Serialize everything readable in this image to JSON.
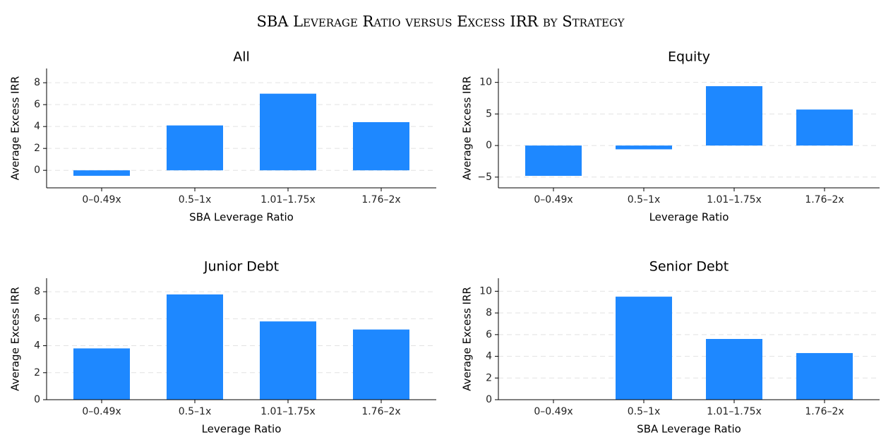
{
  "title": "SBA Leverage Ratio versus Excess IRR by Strategy",
  "chart_data": [
    {
      "type": "bar",
      "title": "All",
      "x_label": "SBA Leverage Ratio",
      "y_label": "Average Excess IRR",
      "categories": [
        "0–0.49x",
        "0.5–1x",
        "1.01–1.75x",
        "1.76–2x"
      ],
      "values": [
        -0.5,
        4.1,
        7.0,
        4.4
      ],
      "color": "#1e88ff",
      "ylim": [
        -1.6,
        9.3
      ],
      "yticks": [
        0,
        2,
        4,
        6,
        8
      ],
      "grid": true
    },
    {
      "type": "bar",
      "title": "Equity",
      "x_label": "Leverage Ratio",
      "y_label": "Average Excess IRR",
      "categories": [
        "0–0.49x",
        "0.5–1x",
        "1.01–1.75x",
        "1.76–2x"
      ],
      "values": [
        -4.8,
        -0.6,
        9.4,
        5.7
      ],
      "color": "#1e88ff",
      "ylim": [
        -6.7,
        12.2
      ],
      "yticks": [
        {
          "value": -5,
          "label": "−5"
        },
        0,
        5,
        10
      ],
      "grid": true
    },
    {
      "type": "bar",
      "title": "Junior Debt",
      "x_label": "Leverage Ratio",
      "y_label": "Average Excess IRR",
      "categories": [
        "0–0.49x",
        "0.5–1x",
        "1.01–1.75x",
        "1.76–2x"
      ],
      "values": [
        3.8,
        7.8,
        5.8,
        5.2
      ],
      "color": "#1e88ff",
      "ylim": [
        0,
        9.0
      ],
      "yticks": [
        0,
        2,
        4,
        6,
        8
      ],
      "grid": true
    },
    {
      "type": "bar",
      "title": "Senior Debt",
      "x_label": "SBA Leverage Ratio",
      "y_label": "Average Excess IRR",
      "categories": [
        "0–0.49x",
        "0.5–1x",
        "1.01–1.75x",
        "1.76–2x"
      ],
      "values": [
        null,
        9.5,
        5.6,
        4.3
      ],
      "color": "#1e88ff",
      "ylim": [
        0,
        11.2
      ],
      "yticks": [
        0,
        2,
        4,
        6,
        8,
        10
      ],
      "grid": true
    }
  ]
}
